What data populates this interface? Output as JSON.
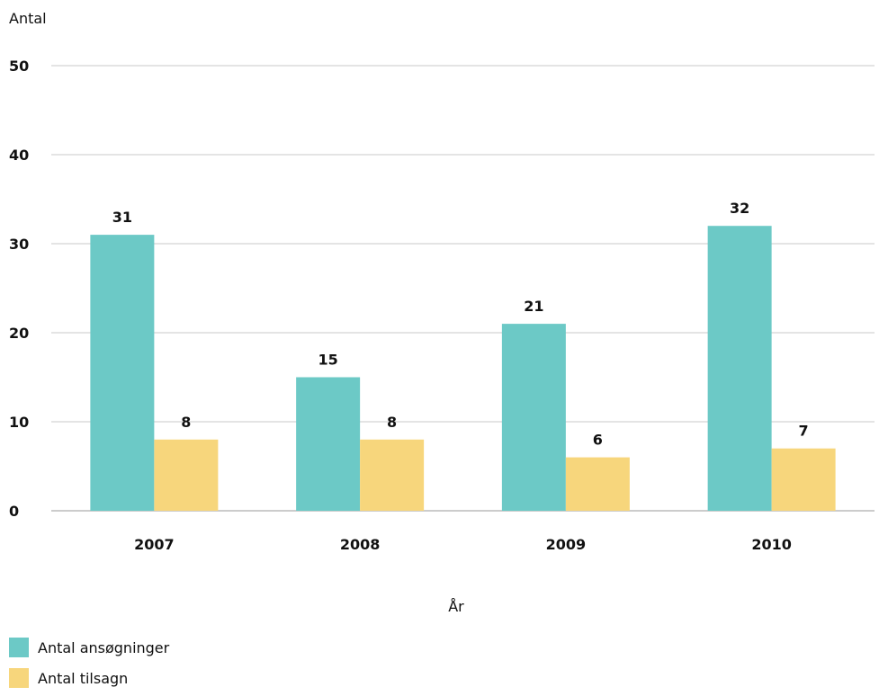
{
  "chart_data": {
    "type": "bar",
    "ylabel": "Antal",
    "xlabel": "År",
    "categories": [
      "2007",
      "2008",
      "2009",
      "2010"
    ],
    "ylim": [
      0,
      50
    ],
    "yticks": [
      0,
      10,
      20,
      30,
      40,
      50
    ],
    "grid": true,
    "legend_position": "bottom-left",
    "series": [
      {
        "name": "Antal ansøgninger",
        "values": [
          31,
          15,
          21,
          32
        ],
        "color": "#6cc9c6"
      },
      {
        "name": "Antal tilsagn",
        "values": [
          8,
          8,
          6,
          7
        ],
        "color": "#f7d67c"
      }
    ]
  }
}
